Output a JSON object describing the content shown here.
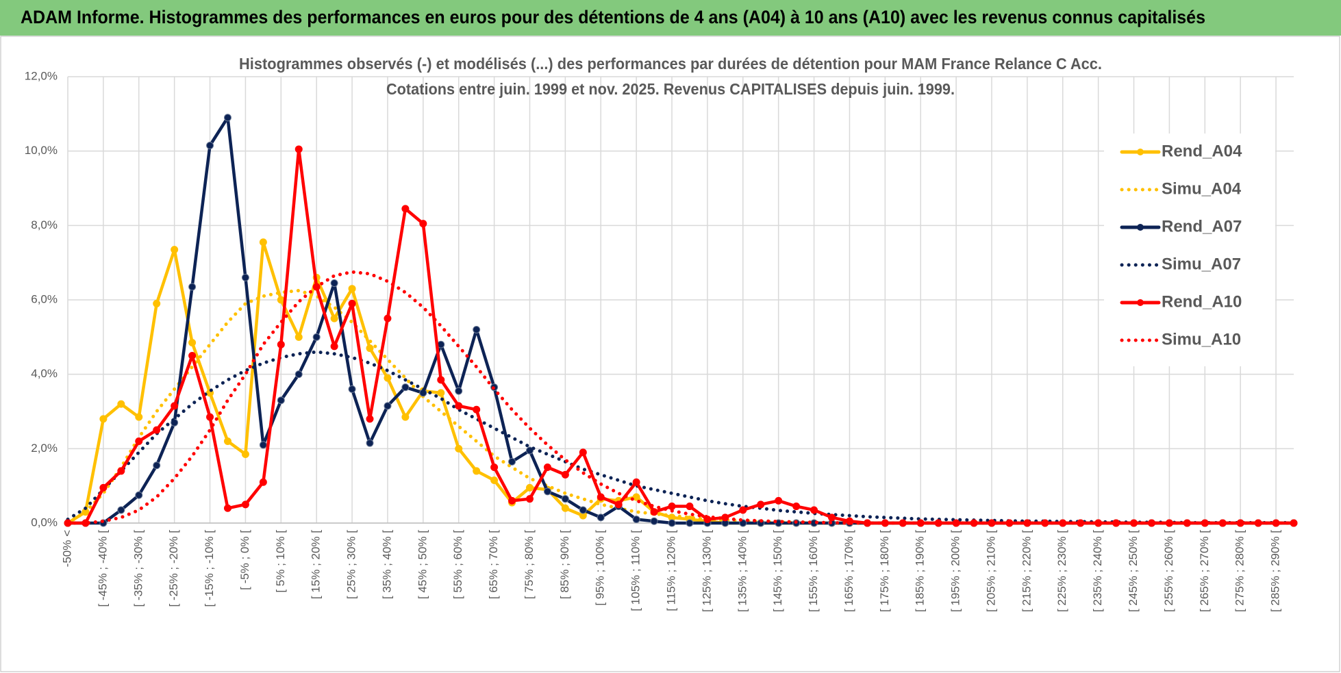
{
  "banner": "ADAM Informe. Histogrammes des performances en euros pour des détentions de 4 ans (A04) à 10 ans (A10) avec les revenus connus capitalisés",
  "chart_data": {
    "type": "line",
    "title": "Histogrammes observés (-) et modélisés (...) des performances par durées de détention pour MAM France Relance C Acc.",
    "subtitle": "Cotations entre juin. 1999 et nov. 2025. Revenus CAPITALISES depuis juin. 1999.",
    "categories": [
      "-50% <",
      null,
      "[ -45% ; -40% [",
      null,
      "[ -35% ; -30% [",
      null,
      "[ -25% ; -20% [",
      null,
      "[ -15% ; -10% [",
      null,
      "[ -5% ; 0% [",
      null,
      "[ 5% ; 10% [",
      null,
      "[ 15% ; 20% [",
      null,
      "[ 25% ; 30% [",
      null,
      "[ 35% ; 40% [",
      null,
      "[ 45% ; 50% [",
      null,
      "[ 55% ; 60% [",
      null,
      "[ 65% ; 70% [",
      null,
      "[ 75% ; 80% [",
      null,
      "[ 85% ; 90% [",
      null,
      "[ 95% ; 100% [",
      null,
      "[ 105% ; 110% [",
      null,
      "[ 115% ; 120% [",
      null,
      "[ 125% ; 130% [",
      null,
      "[ 135% ; 140% [",
      null,
      "[ 145% ; 150% [",
      null,
      "[ 155% ; 160% [",
      null,
      "[ 165% ; 170% [",
      null,
      "[ 175% ; 180% [",
      null,
      "[ 185% ; 190% [",
      null,
      "[ 195% ; 200% [",
      null,
      "[ 205% ; 210% [",
      null,
      "[ 215% ; 220% [",
      null,
      "[ 225% ; 230% [",
      null,
      "[ 235% ; 240% [",
      null,
      "[ 245% ; 250% [",
      null,
      "[ 255% ; 260% [",
      null,
      "[ 265% ; 270% [",
      null,
      "[ 275% ; 280% [",
      null,
      "[ 285% ; 290% [",
      null
    ],
    "ylim": [
      0,
      12
    ],
    "yticks": [
      {
        "value": 0,
        "label": "0,0%"
      },
      {
        "value": 2,
        "label": "2,0%"
      },
      {
        "value": 4,
        "label": "4,0%"
      },
      {
        "value": 6,
        "label": "6,0%"
      },
      {
        "value": 8,
        "label": "8,0%"
      },
      {
        "value": 10,
        "label": "10,0%"
      },
      {
        "value": 12,
        "label": "12,0%"
      }
    ],
    "grid": true,
    "legend": "right",
    "series": [
      {
        "name": "Rend_A04",
        "color": "#ffc000",
        "style": "solid",
        "values": [
          0,
          0.3,
          2.8,
          3.2,
          2.85,
          5.9,
          7.35,
          4.85,
          3.5,
          2.2,
          1.85,
          7.55,
          6.0,
          5.0,
          6.6,
          5.5,
          6.3,
          4.7,
          3.9,
          2.85,
          3.55,
          3.5,
          2.0,
          1.4,
          1.15,
          0.55,
          0.95,
          0.9,
          0.4,
          0.2,
          0.65,
          0.6,
          0.7,
          0.3,
          0.15,
          0.1,
          0.05,
          0,
          0,
          0,
          0,
          0,
          0,
          0,
          0,
          0,
          0,
          0,
          0,
          0,
          0,
          0,
          0,
          0,
          0,
          0,
          0,
          0,
          0,
          0,
          0,
          0,
          0,
          0,
          0,
          0,
          0,
          0,
          0,
          0
        ]
      },
      {
        "name": "Simu_A04",
        "color": "#ffc000",
        "style": "dotted",
        "values": [
          0,
          0.3,
          0.8,
          1.5,
          2.3,
          3.0,
          3.6,
          4.2,
          4.8,
          5.4,
          5.9,
          6.1,
          6.2,
          6.25,
          6.1,
          5.8,
          5.4,
          4.9,
          4.4,
          3.9,
          3.4,
          3.0,
          2.6,
          2.2,
          1.8,
          1.5,
          1.2,
          1.0,
          0.8,
          0.65,
          0.5,
          0.4,
          0.3,
          0.25,
          0.2,
          0.15,
          0.1,
          0.08,
          0.06,
          0.04,
          0.03,
          0.02,
          0.01,
          0,
          0,
          0,
          0,
          0,
          0,
          0,
          0,
          0,
          0,
          0,
          0,
          0,
          0,
          0,
          0,
          0,
          0,
          0,
          0,
          0,
          0,
          0,
          0,
          0,
          0,
          0
        ]
      },
      {
        "name": "Rend_A07",
        "color": "#0d2355",
        "style": "solid",
        "values": [
          0,
          0,
          0,
          0.35,
          0.75,
          1.55,
          2.7,
          6.35,
          10.15,
          10.9,
          6.6,
          2.1,
          3.3,
          4.0,
          5.0,
          6.45,
          3.6,
          2.15,
          3.15,
          3.65,
          3.5,
          4.8,
          3.55,
          5.2,
          3.65,
          1.65,
          1.95,
          0.85,
          0.65,
          0.35,
          0.15,
          0.45,
          0.1,
          0.05,
          0,
          0,
          0,
          0,
          0,
          0,
          0,
          0,
          0,
          0,
          0,
          0,
          0,
          0,
          0,
          0,
          0,
          0,
          0,
          0,
          0,
          0,
          0,
          0,
          0,
          0,
          0,
          0,
          0,
          0,
          0,
          0,
          0,
          0,
          0,
          0
        ]
      },
      {
        "name": "Simu_A07",
        "color": "#0d2355",
        "style": "dotted",
        "values": [
          0.1,
          0.4,
          0.9,
          1.4,
          1.9,
          2.4,
          2.8,
          3.2,
          3.55,
          3.85,
          4.1,
          4.3,
          4.45,
          4.55,
          4.6,
          4.55,
          4.45,
          4.3,
          4.1,
          3.85,
          3.6,
          3.35,
          3.05,
          2.8,
          2.55,
          2.3,
          2.05,
          1.85,
          1.65,
          1.45,
          1.3,
          1.15,
          1.0,
          0.9,
          0.8,
          0.7,
          0.6,
          0.52,
          0.45,
          0.4,
          0.34,
          0.3,
          0.26,
          0.23,
          0.2,
          0.17,
          0.15,
          0.13,
          0.11,
          0.1,
          0.09,
          0.08,
          0.07,
          0.06,
          0.05,
          0.05,
          0.04,
          0.04,
          0.03,
          0.03,
          0.02,
          0.02,
          0.02,
          0.01,
          0.01,
          0.01,
          0.01,
          0.01,
          0.01,
          0.01
        ]
      },
      {
        "name": "Rend_A10",
        "color": "#ff0000",
        "style": "solid",
        "values": [
          0,
          0,
          0.95,
          1.4,
          2.2,
          2.5,
          3.15,
          4.5,
          2.85,
          0.4,
          0.5,
          1.1,
          4.8,
          10.05,
          6.35,
          4.75,
          5.9,
          2.8,
          5.5,
          8.45,
          8.05,
          3.85,
          3.15,
          3.05,
          1.5,
          0.6,
          0.65,
          1.5,
          1.3,
          1.9,
          0.7,
          0.5,
          1.1,
          0.3,
          0.45,
          0.45,
          0.1,
          0.15,
          0.35,
          0.5,
          0.6,
          0.45,
          0.35,
          0.15,
          0.05,
          0,
          0,
          0,
          0,
          0,
          0,
          0,
          0,
          0,
          0,
          0,
          0,
          0,
          0,
          0,
          0,
          0,
          0,
          0,
          0,
          0,
          0,
          0,
          0,
          0
        ]
      },
      {
        "name": "Simu_A10",
        "color": "#ff0000",
        "style": "dotted",
        "values": [
          0,
          0,
          0.05,
          0.15,
          0.35,
          0.7,
          1.2,
          1.8,
          2.5,
          3.3,
          4.0,
          4.8,
          5.4,
          5.95,
          6.35,
          6.65,
          6.75,
          6.7,
          6.5,
          6.2,
          5.8,
          5.3,
          4.75,
          4.2,
          3.6,
          3.05,
          2.55,
          2.1,
          1.7,
          1.35,
          1.05,
          0.8,
          0.6,
          0.45,
          0.33,
          0.24,
          0.17,
          0.12,
          0.08,
          0.06,
          0.04,
          0.03,
          0.02,
          0.01,
          0,
          0,
          0,
          0,
          0,
          0,
          0,
          0,
          0,
          0,
          0,
          0,
          0,
          0,
          0,
          0,
          0,
          0,
          0,
          0,
          0,
          0,
          0,
          0,
          0,
          0
        ]
      }
    ]
  }
}
